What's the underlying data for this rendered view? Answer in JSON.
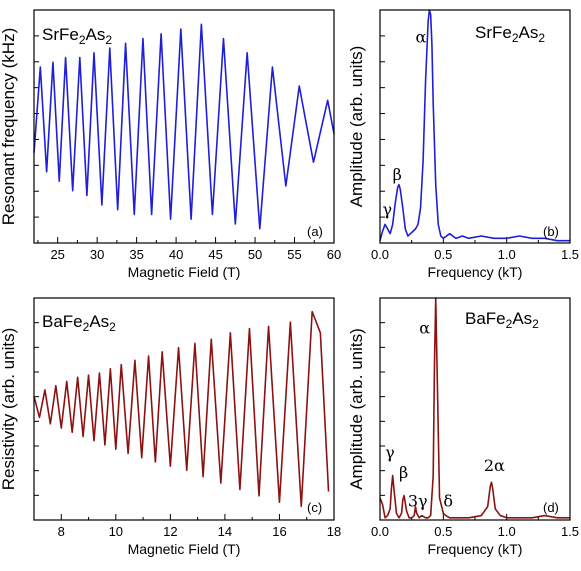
{
  "chart_data": [
    {
      "id": "a",
      "type": "line",
      "sample": {
        "main": "SrFe",
        "s1": "2",
        "mid": "As",
        "s2": "2"
      },
      "panel_label": "(a)",
      "xlabel": "Magnetic Field (T)",
      "ylabel": "Resonant frequency (kHz)",
      "xlim": [
        22,
        60
      ],
      "xticks": [
        25,
        30,
        35,
        40,
        45,
        50,
        55,
        60
      ],
      "color": "#1f1fd8",
      "series": [
        {
          "x": [
            22,
            22.8,
            23.6,
            24.4,
            25.2,
            26.0,
            26.9,
            27.8,
            28.7,
            29.6,
            30.6,
            31.6,
            32.6,
            33.6,
            34.7,
            35.8,
            36.9,
            38.1,
            39.3,
            40.6,
            41.9,
            43.2,
            44.6,
            46.0,
            47.5,
            49.0,
            50.6,
            52.2,
            53.9,
            55.6,
            57.4,
            59.2,
            60
          ],
          "y": [
            -0.2,
            0.7,
            -0.4,
            0.75,
            -0.5,
            0.8,
            -0.6,
            0.8,
            -0.65,
            0.85,
            -0.75,
            0.9,
            -0.8,
            0.95,
            -0.85,
            1.0,
            -0.85,
            1.05,
            -0.9,
            1.1,
            -0.9,
            1.15,
            -0.85,
            1.0,
            -0.95,
            0.85,
            -1.0,
            0.7,
            -0.55,
            0.5,
            -0.3,
            0.35,
            0.0
          ]
        }
      ]
    },
    {
      "id": "b",
      "type": "line",
      "sample": {
        "main": "SrFe",
        "s1": "2",
        "mid": "As",
        "s2": "2"
      },
      "panel_label": "(b)",
      "xlabel": "Frequency (kT)",
      "ylabel": "Amplitude (arb. units)",
      "xlim": [
        0,
        1.5
      ],
      "ylim": [
        0,
        1.0
      ],
      "xticks": [
        0.0,
        0.5,
        1.0,
        1.5
      ],
      "xticklabels": [
        "0.0",
        "0.5",
        "1.0",
        "1.5"
      ],
      "color": "#1f1fd8",
      "series": [
        {
          "x": [
            0,
            0.02,
            0.04,
            0.06,
            0.08,
            0.1,
            0.12,
            0.14,
            0.15,
            0.16,
            0.18,
            0.2,
            0.22,
            0.24,
            0.26,
            0.28,
            0.3,
            0.32,
            0.34,
            0.36,
            0.38,
            0.39,
            0.4,
            0.41,
            0.42,
            0.44,
            0.46,
            0.48,
            0.5,
            0.55,
            0.6,
            0.65,
            0.7,
            0.8,
            0.9,
            1.0,
            1.1,
            1.2,
            1.3,
            1.4,
            1.5
          ],
          "y": [
            0.01,
            0.05,
            0.08,
            0.06,
            0.04,
            0.08,
            0.17,
            0.24,
            0.25,
            0.23,
            0.15,
            0.06,
            0.03,
            0.04,
            0.05,
            0.06,
            0.08,
            0.15,
            0.35,
            0.7,
            0.95,
            1.0,
            0.98,
            0.85,
            0.6,
            0.25,
            0.08,
            0.03,
            0.02,
            0.04,
            0.02,
            0.03,
            0.02,
            0.03,
            0.02,
            0.02,
            0.03,
            0.02,
            0.02,
            0.01,
            0.01
          ]
        }
      ],
      "annotations": [
        {
          "text": "α",
          "x": 0.28,
          "y": 0.86
        },
        {
          "text": "β",
          "x": 0.1,
          "y": 0.27
        },
        {
          "text": "γ",
          "x": 0.02,
          "y": 0.12
        }
      ]
    },
    {
      "id": "c",
      "type": "line",
      "sample": {
        "main": "BaFe",
        "s1": "2",
        "mid": "As",
        "s2": "2"
      },
      "panel_label": "(c)",
      "xlabel": "Magnetic Field (T)",
      "ylabel": "Resistivity (arb. units)",
      "xlim": [
        7,
        18
      ],
      "xticks": [
        8,
        10,
        12,
        14,
        16,
        18
      ],
      "color": "#8b1212",
      "series": [
        {
          "x": [
            7.0,
            7.2,
            7.4,
            7.6,
            7.8,
            8.0,
            8.2,
            8.4,
            8.6,
            8.8,
            9.0,
            9.2,
            9.4,
            9.6,
            9.8,
            10.0,
            10.2,
            10.45,
            10.7,
            10.95,
            11.2,
            11.45,
            11.7,
            12.0,
            12.3,
            12.6,
            12.9,
            13.2,
            13.5,
            13.85,
            14.2,
            14.55,
            14.9,
            15.25,
            15.6,
            16.0,
            16.4,
            16.8,
            17.2,
            17.5,
            17.8
          ],
          "y": [
            0.55,
            0.45,
            0.58,
            0.42,
            0.6,
            0.4,
            0.62,
            0.38,
            0.64,
            0.36,
            0.65,
            0.34,
            0.66,
            0.32,
            0.68,
            0.3,
            0.7,
            0.28,
            0.72,
            0.26,
            0.74,
            0.24,
            0.76,
            0.22,
            0.78,
            0.2,
            0.8,
            0.17,
            0.82,
            0.14,
            0.85,
            0.11,
            0.87,
            0.08,
            0.88,
            0.05,
            0.9,
            0.03,
            0.95,
            0.85,
            0.1
          ]
        }
      ]
    },
    {
      "id": "d",
      "type": "line",
      "sample": {
        "main": "BaFe",
        "s1": "2",
        "mid": "As",
        "s2": "2"
      },
      "panel_label": "(d)",
      "xlabel": "Frequency (kT)",
      "ylabel": "Amplitude (arb. units)",
      "xlim": [
        0,
        1.5
      ],
      "ylim": [
        0,
        1.0
      ],
      "xticks": [
        0.0,
        0.5,
        1.0,
        1.5
      ],
      "xticklabels": [
        "0.0",
        "0.5",
        "1.0",
        "1.5"
      ],
      "color": "#8b1212",
      "series": [
        {
          "x": [
            0,
            0.02,
            0.04,
            0.06,
            0.08,
            0.09,
            0.1,
            0.11,
            0.13,
            0.15,
            0.17,
            0.18,
            0.19,
            0.21,
            0.23,
            0.25,
            0.27,
            0.28,
            0.29,
            0.31,
            0.33,
            0.36,
            0.38,
            0.4,
            0.42,
            0.43,
            0.44,
            0.45,
            0.47,
            0.5,
            0.52,
            0.55,
            0.6,
            0.7,
            0.8,
            0.85,
            0.87,
            0.88,
            0.89,
            0.91,
            0.95,
            1.0,
            1.1,
            1.2,
            1.3,
            1.4,
            1.5
          ],
          "y": [
            0.1,
            0.07,
            0.01,
            0.02,
            0.05,
            0.14,
            0.2,
            0.14,
            0.03,
            0.01,
            0.03,
            0.09,
            0.11,
            0.04,
            0.01,
            0.01,
            0.02,
            0.06,
            0.03,
            0.01,
            0.02,
            0.01,
            0.01,
            0.02,
            0.2,
            0.7,
            1.0,
            0.7,
            0.1,
            0.03,
            0.02,
            0.01,
            0.01,
            0.01,
            0.02,
            0.06,
            0.15,
            0.17,
            0.14,
            0.05,
            0.02,
            0.01,
            0.01,
            0.01,
            0.02,
            0.01,
            0.01
          ]
        }
      ],
      "annotations": [
        {
          "text": "α",
          "x": 0.31,
          "y": 0.84
        },
        {
          "text": "γ",
          "x": 0.04,
          "y": 0.28
        },
        {
          "text": "β",
          "x": 0.15,
          "y": 0.19
        },
        {
          "text": "3γ",
          "x": 0.22,
          "y": 0.06
        },
        {
          "text": "δ",
          "x": 0.5,
          "y": 0.06
        },
        {
          "text": "2α",
          "x": 0.82,
          "y": 0.22
        }
      ]
    }
  ]
}
